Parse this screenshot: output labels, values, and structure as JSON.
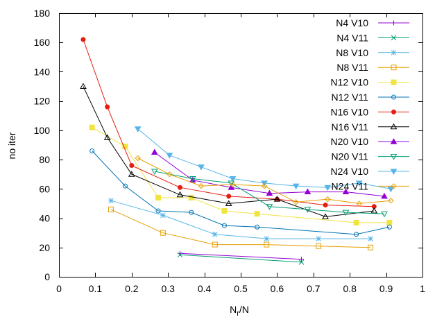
{
  "chart_data": {
    "type": "line",
    "title": "",
    "xlabel": "N",
    "xlabel_sub": "r",
    "xlabel_suffix": "/N",
    "ylabel": "no iter",
    "xlim": [
      0,
      1
    ],
    "ylim": [
      0,
      180
    ],
    "xticks": [
      0,
      0.1,
      0.2,
      0.3,
      0.4,
      0.5,
      0.6,
      0.7,
      0.8,
      0.9,
      1
    ],
    "xtick_labels": [
      "0",
      "0.1",
      "0.2",
      "0.3",
      "0.4",
      "0.5",
      "0.6",
      "0.7",
      "0.8",
      "0.9",
      "1"
    ],
    "yticks": [
      0,
      20,
      40,
      60,
      80,
      100,
      120,
      140,
      160,
      180
    ],
    "ytick_labels": [
      "0",
      "20",
      "40",
      "60",
      "80",
      "100",
      "120",
      "140",
      "160",
      "180"
    ],
    "grid": false,
    "legend_position": "top-right",
    "series": [
      {
        "name": "N4 V10",
        "color": "#9400d3",
        "marker": "plus",
        "x": [
          0.333,
          0.667
        ],
        "y": [
          16,
          12
        ]
      },
      {
        "name": "N4 V11",
        "color": "#009e73",
        "marker": "cross",
        "x": [
          0.333,
          0.667
        ],
        "y": [
          15,
          10
        ]
      },
      {
        "name": "N8 V10",
        "color": "#56b4e9",
        "marker": "star",
        "x": [
          0.143,
          0.286,
          0.429,
          0.571,
          0.714,
          0.857
        ],
        "y": [
          52,
          42,
          29,
          26,
          26,
          26
        ]
      },
      {
        "name": "N8 V11",
        "color": "#e69f00",
        "marker": "square-open",
        "x": [
          0.143,
          0.286,
          0.429,
          0.571,
          0.714,
          0.857
        ],
        "y": [
          46,
          30,
          22,
          22,
          21,
          20
        ]
      },
      {
        "name": "N12 V10",
        "color": "#f0e442",
        "marker": "square-filled",
        "x": [
          0.091,
          0.182,
          0.273,
          0.364,
          0.455,
          0.545,
          0.818,
          0.909
        ],
        "y": [
          102,
          89,
          54,
          54,
          45,
          43,
          37,
          37
        ]
      },
      {
        "name": "N12 V11",
        "color": "#0072b2",
        "marker": "circle-open",
        "x": [
          0.091,
          0.182,
          0.273,
          0.364,
          0.455,
          0.545,
          0.818,
          0.909
        ],
        "y": [
          86,
          62,
          45,
          44,
          35,
          34,
          29,
          34
        ]
      },
      {
        "name": "N16 V10",
        "color": "#e51e10",
        "marker": "circle-filled",
        "x": [
          0.0667,
          0.133,
          0.2,
          0.333,
          0.467,
          0.6,
          0.733,
          0.867
        ],
        "y": [
          162,
          116,
          76,
          61,
          55,
          53,
          49,
          48
        ]
      },
      {
        "name": "N16 V11",
        "color": "#000000",
        "marker": "triangle-open",
        "x": [
          0.0667,
          0.133,
          0.2,
          0.333,
          0.467,
          0.6,
          0.733,
          0.867
        ],
        "y": [
          130,
          95,
          70,
          56,
          50,
          53,
          41,
          45
        ]
      },
      {
        "name": "N20 V10",
        "color": "#9400d3",
        "marker": "triangle-filled",
        "x": [
          0.263,
          0.368,
          0.474,
          0.579,
          0.684,
          0.789,
          0.895
        ],
        "y": [
          85,
          66,
          61,
          57,
          58,
          58,
          55
        ]
      },
      {
        "name": "N20 V11",
        "color": "#009e73",
        "marker": "triangle-down-open",
        "x": [
          0.263,
          0.368,
          0.474,
          0.579,
          0.684,
          0.789,
          0.895
        ],
        "y": [
          72,
          67,
          64,
          48,
          46,
          44,
          43
        ]
      },
      {
        "name": "N24 V10",
        "color": "#56b4e9",
        "marker": "triangle-down-filled",
        "x": [
          0.217,
          0.304,
          0.391,
          0.478,
          0.565,
          0.652,
          0.739,
          0.826,
          0.913
        ],
        "y": [
          101,
          83,
          75,
          67,
          64,
          62,
          61,
          64,
          60
        ]
      },
      {
        "name": "N24 V11",
        "color": "#e69f00",
        "marker": "diamond-open",
        "x": [
          0.217,
          0.304,
          0.391,
          0.478,
          0.565,
          0.652,
          0.739,
          0.826,
          0.913
        ],
        "y": [
          81,
          70,
          62,
          63,
          62,
          51,
          53,
          50,
          52
        ]
      }
    ]
  }
}
